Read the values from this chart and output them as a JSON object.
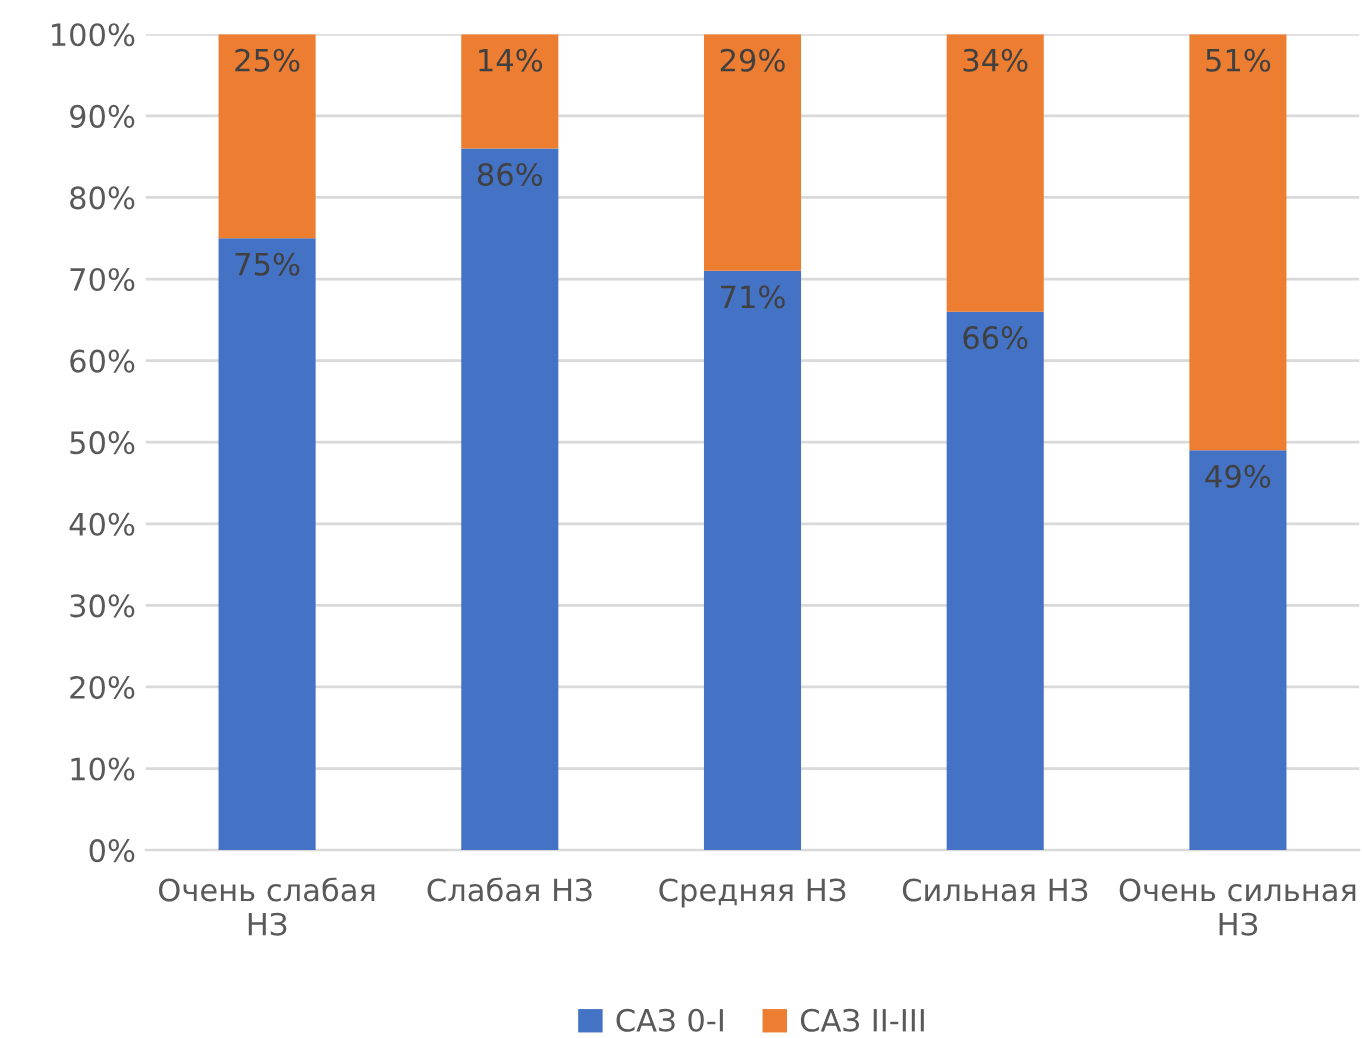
{
  "chart_data": {
    "type": "bar",
    "stacked": true,
    "categories": [
      "Очень слабая\nНЗ",
      "Слабая НЗ",
      "Средняя НЗ",
      "Сильная НЗ",
      "Очень сильная\nНЗ"
    ],
    "series": [
      {
        "name": "САЗ 0-I",
        "color": "#4472c4",
        "values": [
          75,
          86,
          71,
          66,
          49
        ],
        "value_labels": [
          "75%",
          "86%",
          "71%",
          "66%",
          "49%"
        ]
      },
      {
        "name": "САЗ II-III",
        "color": "#ed7d31",
        "values": [
          25,
          14,
          29,
          34,
          51
        ],
        "value_labels": [
          "25%",
          "14%",
          "29%",
          "34%",
          "51%"
        ]
      }
    ],
    "ylim": [
      0,
      100
    ],
    "yticks": [
      {
        "value": 0,
        "label": "0%"
      },
      {
        "value": 10,
        "label": "10%"
      },
      {
        "value": 20,
        "label": "20%"
      },
      {
        "value": 30,
        "label": "30%"
      },
      {
        "value": 40,
        "label": "40%"
      },
      {
        "value": 50,
        "label": "50%"
      },
      {
        "value": 60,
        "label": "60%"
      },
      {
        "value": 70,
        "label": "70%"
      },
      {
        "value": 80,
        "label": "80%"
      },
      {
        "value": 90,
        "label": "90%"
      },
      {
        "value": 100,
        "label": "100%"
      }
    ],
    "grid": "y",
    "legend": "bottom"
  }
}
